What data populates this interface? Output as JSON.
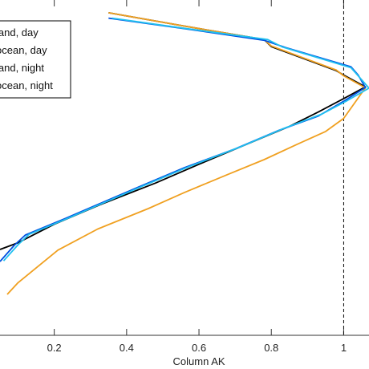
{
  "chart_data": {
    "type": "line",
    "xlabel": "Column AK",
    "ylabel": "",
    "xlim": [
      0.05,
      1.07
    ],
    "ylim": [
      0,
      1
    ],
    "xticks": [
      0.2,
      0.4,
      0.6,
      0.8,
      1.0
    ],
    "xtick_labels": [
      "0.2",
      "0.4",
      "0.6",
      "0.8",
      "1"
    ],
    "reference_line": {
      "x": 1.0,
      "style": "dashed"
    },
    "legend": {
      "position": "top-left"
    },
    "series": [
      {
        "name": "land, day",
        "color": "#000000",
        "points": [
          [
            0.35,
            0.962
          ],
          [
            0.55,
            0.924
          ],
          [
            0.78,
            0.882
          ],
          [
            0.8,
            0.861
          ],
          [
            0.98,
            0.789
          ],
          [
            1.0,
            0.776
          ],
          [
            1.06,
            0.741
          ],
          [
            1.0,
            0.706
          ],
          [
            0.93,
            0.666
          ],
          [
            0.85,
            0.623
          ],
          [
            0.73,
            0.569
          ],
          [
            0.6,
            0.51
          ],
          [
            0.48,
            0.454
          ],
          [
            0.33,
            0.391
          ],
          [
            0.2,
            0.331
          ],
          [
            0.1,
            0.276
          ],
          [
            0.05,
            0.256
          ]
        ]
      },
      {
        "name": "ocean, day",
        "color": "#f0a020",
        "points": [
          [
            0.35,
            0.962
          ],
          [
            0.55,
            0.924
          ],
          [
            0.78,
            0.882
          ],
          [
            0.8,
            0.863
          ],
          [
            0.98,
            0.791
          ],
          [
            1.0,
            0.774
          ],
          [
            1.06,
            0.738
          ],
          [
            1.0,
            0.647
          ],
          [
            0.95,
            0.608
          ],
          [
            0.87,
            0.569
          ],
          [
            0.78,
            0.524
          ],
          [
            0.68,
            0.48
          ],
          [
            0.56,
            0.426
          ],
          [
            0.46,
            0.378
          ],
          [
            0.32,
            0.317
          ],
          [
            0.21,
            0.254
          ],
          [
            0.1,
            0.157
          ],
          [
            0.07,
            0.122
          ]
        ]
      },
      {
        "name": "land, night",
        "color": "#0050e0",
        "points": [
          [
            0.35,
            0.946
          ],
          [
            0.55,
            0.916
          ],
          [
            0.78,
            0.88
          ],
          [
            0.84,
            0.858
          ],
          [
            1.02,
            0.801
          ],
          [
            1.04,
            0.776
          ],
          [
            1.06,
            0.739
          ],
          [
            1.0,
            0.698
          ],
          [
            0.93,
            0.654
          ],
          [
            0.82,
            0.611
          ],
          [
            0.7,
            0.556
          ],
          [
            0.56,
            0.5
          ],
          [
            0.43,
            0.441
          ],
          [
            0.32,
            0.39
          ],
          [
            0.23,
            0.348
          ],
          [
            0.12,
            0.299
          ],
          [
            0.09,
            0.269
          ],
          [
            0.05,
            0.22
          ]
        ]
      },
      {
        "name": "ocean, night",
        "color": "#20c0f0",
        "points": [
          [
            0.36,
            0.946
          ],
          [
            0.55,
            0.917
          ],
          [
            0.79,
            0.882
          ],
          [
            0.83,
            0.86
          ],
          [
            1.02,
            0.798
          ],
          [
            1.04,
            0.774
          ],
          [
            1.07,
            0.737
          ],
          [
            1.01,
            0.7
          ],
          [
            0.94,
            0.66
          ],
          [
            0.83,
            0.615
          ],
          [
            0.71,
            0.56
          ],
          [
            0.57,
            0.502
          ],
          [
            0.44,
            0.443
          ],
          [
            0.33,
            0.392
          ],
          [
            0.24,
            0.35
          ],
          [
            0.13,
            0.301
          ],
          [
            0.1,
            0.27
          ],
          [
            0.06,
            0.222
          ]
        ]
      }
    ]
  }
}
